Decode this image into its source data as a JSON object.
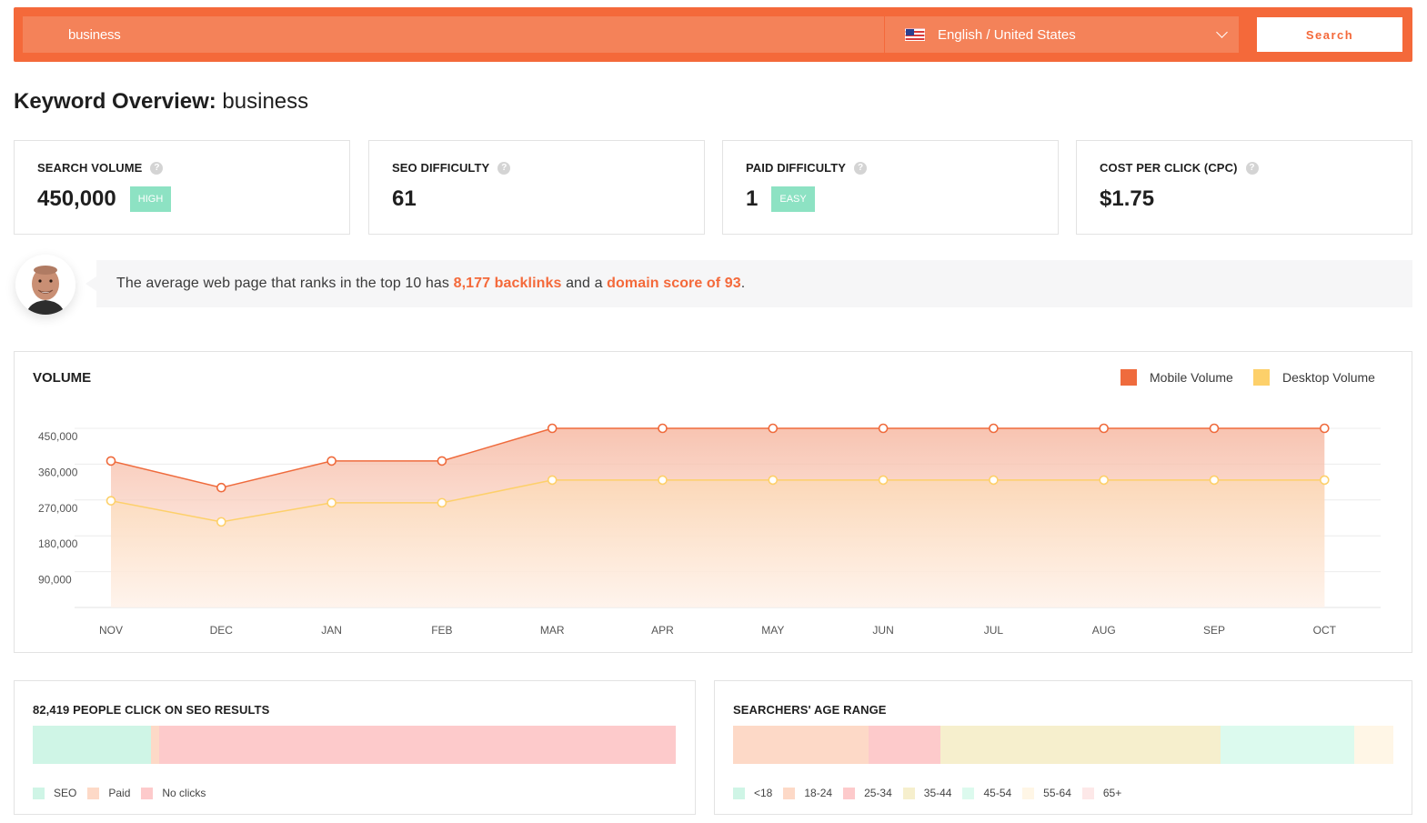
{
  "search": {
    "value": "business",
    "language": "English / United States",
    "button_label": "Search"
  },
  "header": {
    "title_bold": "Keyword Overview:",
    "keyword": "business"
  },
  "metrics": [
    {
      "label": "SEARCH VOLUME",
      "value": "450,000",
      "badge": "HIGH"
    },
    {
      "label": "SEO DIFFICULTY",
      "value": "61"
    },
    {
      "label": "PAID DIFFICULTY",
      "value": "1",
      "badge": "EASY"
    },
    {
      "label": "COST PER CLICK (CPC)",
      "value": "$1.75"
    }
  ],
  "help_glyph": "?",
  "tip": {
    "pre": "The average web page that ranks in the top 10 has ",
    "backlinks": "8,177 backlinks",
    "mid": " and a ",
    "domain": "domain score of 93",
    "post": "."
  },
  "volume": {
    "title": "VOLUME",
    "legend": [
      {
        "label": "Mobile Volume",
        "color": "#ef6b3d"
      },
      {
        "label": "Desktop Volume",
        "color": "#fdd06a"
      }
    ]
  },
  "chart_data": {
    "type": "area",
    "categories": [
      "NOV",
      "DEC",
      "JAN",
      "FEB",
      "MAR",
      "APR",
      "MAY",
      "JUN",
      "JUL",
      "AUG",
      "SEP",
      "OCT"
    ],
    "y_ticks": [
      "450,000",
      "360,000",
      "270,000",
      "180,000",
      "90,000"
    ],
    "ylim": [
      0,
      450000
    ],
    "series": [
      {
        "name": "Mobile Volume",
        "color": "#ef6b3d",
        "values": [
          368000,
          301000,
          368000,
          368000,
          450000,
          450000,
          450000,
          450000,
          450000,
          450000,
          450000,
          450000
        ]
      },
      {
        "name": "Desktop Volume",
        "color": "#fdd06a",
        "values": [
          268000,
          215000,
          263000,
          263000,
          320000,
          320000,
          320000,
          320000,
          320000,
          320000,
          320000,
          320000
        ]
      }
    ],
    "grid": true
  },
  "clicks": {
    "title": "82,419 PEOPLE CLICK ON SEO RESULTS",
    "segments": [
      {
        "label": "SEO",
        "share": 18.4,
        "color": "#cff5e6"
      },
      {
        "label": "Paid",
        "share": 1.2,
        "color": "#fdd9c7"
      },
      {
        "label": "No clicks",
        "share": 80.4,
        "color": "#fdcacb"
      }
    ]
  },
  "age": {
    "title": "SEARCHERS' AGE RANGE",
    "segments": [
      {
        "label": "<18",
        "share": 0,
        "color": "#cff5e6"
      },
      {
        "label": "18-24",
        "share": 20.5,
        "color": "#fdd9c7"
      },
      {
        "label": "25-34",
        "share": 10.9,
        "color": "#fdcacb"
      },
      {
        "label": "35-44",
        "share": 42.4,
        "color": "#f6efcd"
      },
      {
        "label": "45-54",
        "share": 20.3,
        "color": "#dcfaee"
      },
      {
        "label": "55-64",
        "share": 5.9,
        "color": "#fff6e6"
      },
      {
        "label": "65+",
        "share": 0,
        "color": "#fde8e8"
      }
    ]
  }
}
